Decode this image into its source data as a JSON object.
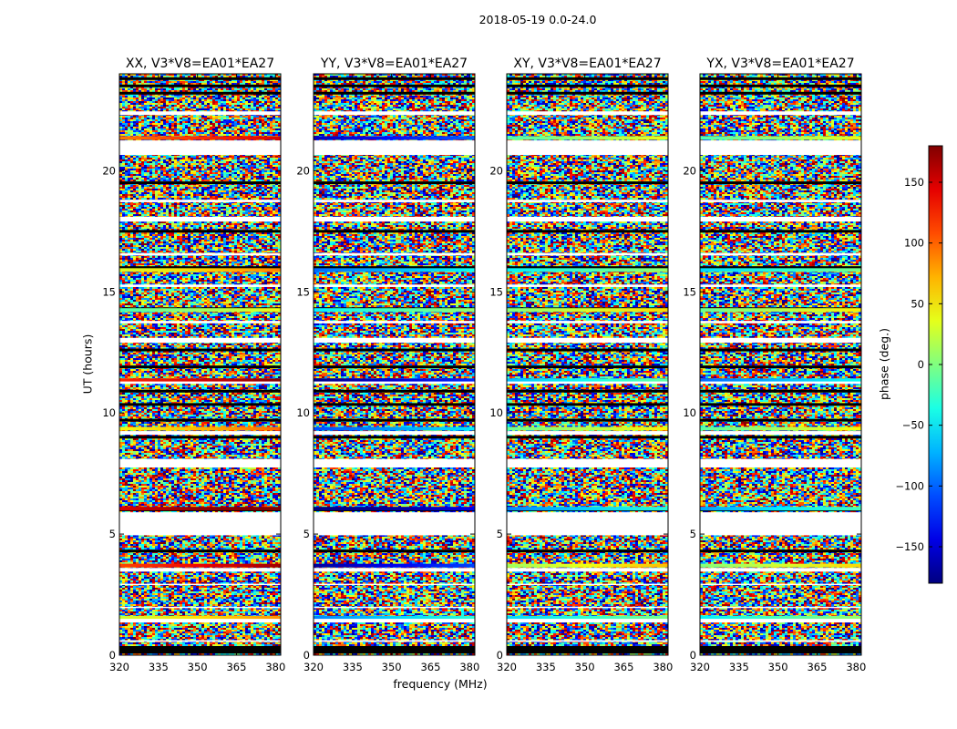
{
  "figure": {
    "suptitle": "2018-05-19 0.0-24.0",
    "ylabel": "UT (hours)",
    "xlabel": "frequency (MHz)",
    "colorbar_label": "phase (deg.)"
  },
  "chart_data": {
    "type": "heatmap",
    "colormap": "jet",
    "x_ticks": [
      "320",
      "335",
      "350",
      "365",
      "380"
    ],
    "y_ticks": [
      "0",
      "5",
      "10",
      "15",
      "20"
    ],
    "xlim": [
      320,
      382
    ],
    "ylim": [
      0,
      24
    ],
    "colorbar": {
      "range": [
        -180,
        180
      ],
      "ticks": [
        "150",
        "100",
        "50",
        "0",
        "−50",
        "−100",
        "−150"
      ],
      "tick_values": [
        150,
        100,
        50,
        0,
        -50,
        -100,
        -150
      ]
    },
    "panels": [
      {
        "title": "XX, V3*V8=EA01*EA27",
        "band_phases": [
          55,
          140,
          175,
          70,
          150,
          10,
          60,
          120
        ]
      },
      {
        "title": "YY, V3*V8=EA01*EA27",
        "band_phases": [
          -60,
          -140,
          -170,
          -80,
          -150,
          -20,
          -70,
          -130
        ]
      },
      {
        "title": "XY, V3*V8=EA01*EA27",
        "band_phases": [
          -30,
          40,
          -60,
          20,
          -40,
          30,
          -20,
          10
        ]
      },
      {
        "title": "YX, V3*V8=EA01*EA27",
        "band_phases": [
          -20,
          30,
          -50,
          15,
          -70,
          20,
          -30,
          10
        ]
      }
    ]
  }
}
